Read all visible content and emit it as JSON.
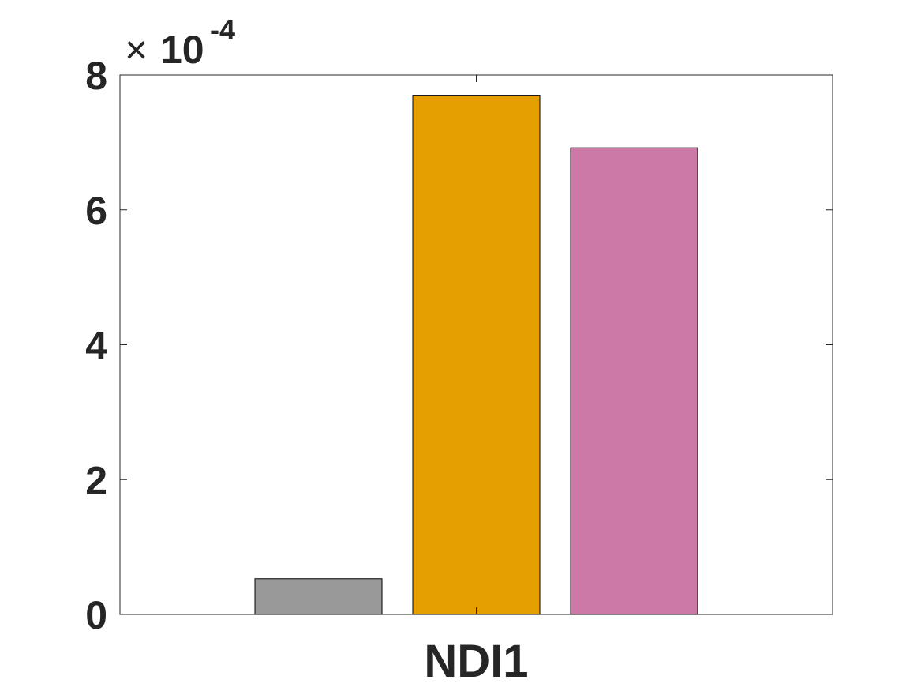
{
  "chart_data": {
    "type": "bar",
    "categories": [
      "NDI1"
    ],
    "series": [
      {
        "values": [
          5.3e-05
        ],
        "color": "#999999"
      },
      {
        "values": [
          0.00077
        ],
        "color": "#E69F00"
      },
      {
        "values": [
          0.000692
        ],
        "color": "#CC79A7"
      }
    ],
    "ylim": [
      0,
      0.0008
    ],
    "yticks": [
      0,
      2,
      4,
      6,
      8
    ],
    "exponent": {
      "base": "10",
      "power": "-4",
      "prefix": "×"
    },
    "xlabel": "",
    "ylabel": "",
    "grid": false
  }
}
